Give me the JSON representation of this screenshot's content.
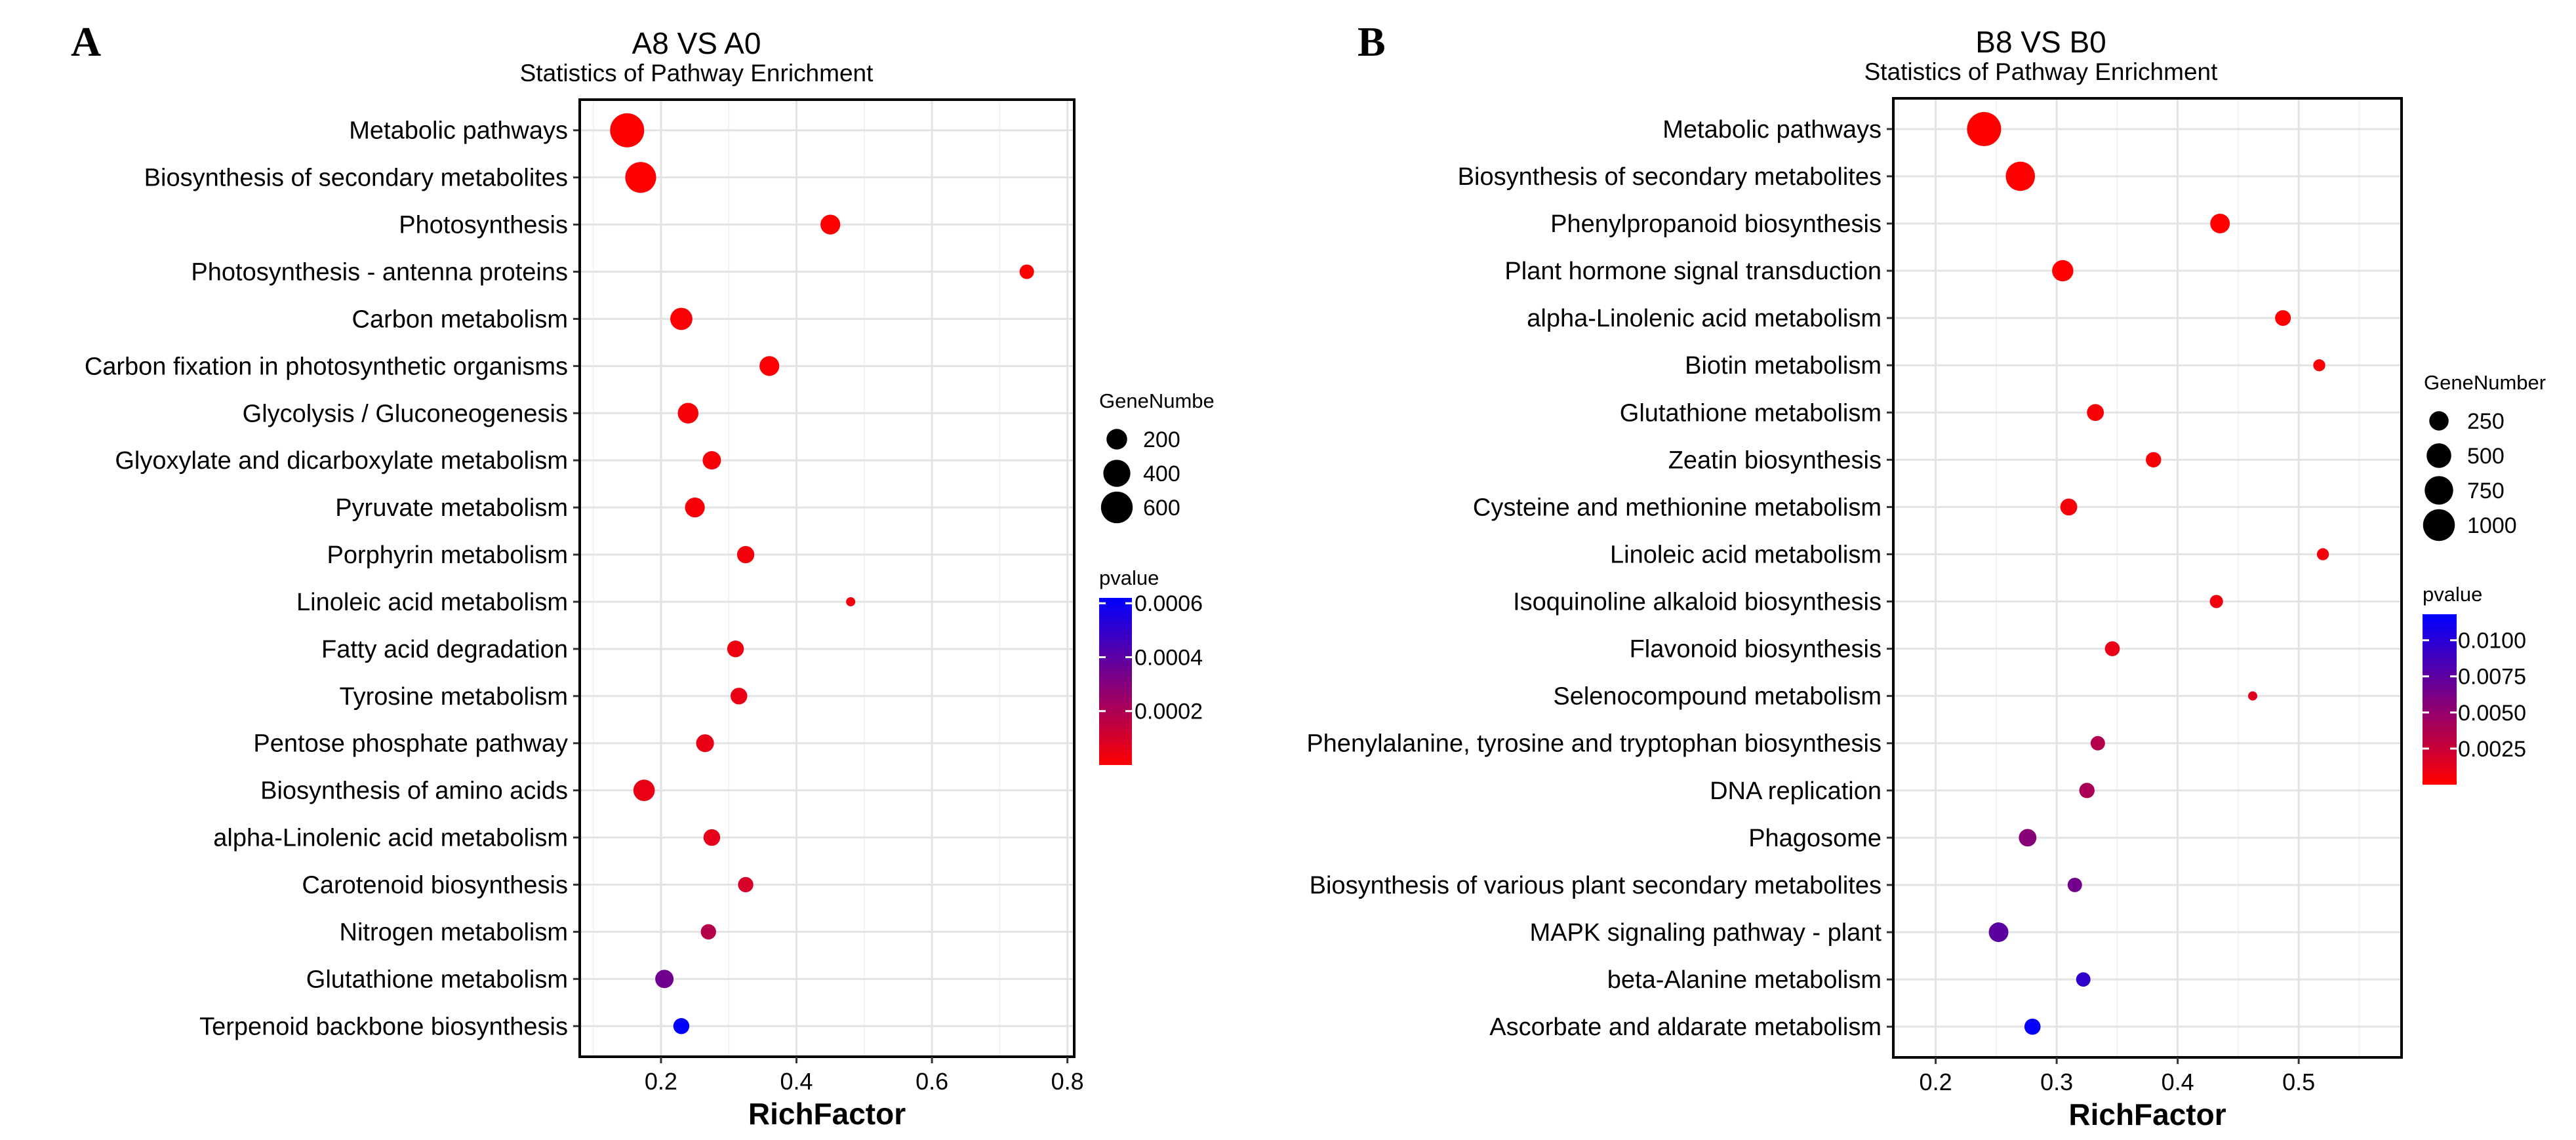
{
  "chart_data": [
    {
      "panel_letter": "A",
      "type": "scatter",
      "title": "A8 VS A0",
      "subtitle": "Statistics of Pathway Enrichment",
      "xlabel": "RichFactor",
      "ylabel": "",
      "xlim": [
        0.08,
        0.81
      ],
      "xticks": [
        0.2,
        0.4,
        0.6,
        0.8
      ],
      "xtick_labels": [
        "0.2",
        "0.4",
        "0.6",
        "0.8"
      ],
      "grid": true,
      "points": [
        {
          "pathway": "Metabolic pathways",
          "rich_factor": 0.15,
          "gene_number": 720,
          "pvalue": 0.0
        },
        {
          "pathway": "Biosynthesis of secondary metabolites",
          "rich_factor": 0.17,
          "gene_number": 560,
          "pvalue": 0.0
        },
        {
          "pathway": "Photosynthesis",
          "rich_factor": 0.45,
          "gene_number": 180,
          "pvalue": 0.0
        },
        {
          "pathway": "Photosynthesis - antenna proteins",
          "rich_factor": 0.74,
          "gene_number": 90,
          "pvalue": 0.0
        },
        {
          "pathway": "Carbon metabolism",
          "rich_factor": 0.23,
          "gene_number": 240,
          "pvalue": 1e-05
        },
        {
          "pathway": "Carbon fixation in photosynthetic organisms",
          "rich_factor": 0.36,
          "gene_number": 180,
          "pvalue": 1e-05
        },
        {
          "pathway": "Glycolysis / Gluconeogenesis",
          "rich_factor": 0.24,
          "gene_number": 200,
          "pvalue": 2e-05
        },
        {
          "pathway": "Glyoxylate and dicarboxylate metabolism",
          "rich_factor": 0.275,
          "gene_number": 150,
          "pvalue": 2e-05
        },
        {
          "pathway": "Pyruvate metabolism",
          "rich_factor": 0.25,
          "gene_number": 180,
          "pvalue": 2e-05
        },
        {
          "pathway": "Porphyrin metabolism",
          "rich_factor": 0.325,
          "gene_number": 130,
          "pvalue": 3e-05
        },
        {
          "pathway": "Linoleic acid metabolism",
          "rich_factor": 0.48,
          "gene_number": 60,
          "pvalue": 3e-05
        },
        {
          "pathway": "Fatty acid degradation",
          "rich_factor": 0.31,
          "gene_number": 120,
          "pvalue": 4e-05
        },
        {
          "pathway": "Tyrosine metabolism",
          "rich_factor": 0.315,
          "gene_number": 120,
          "pvalue": 5e-05
        },
        {
          "pathway": "Pentose phosphate pathway",
          "rich_factor": 0.265,
          "gene_number": 140,
          "pvalue": 5e-05
        },
        {
          "pathway": "Biosynthesis of amino acids",
          "rich_factor": 0.175,
          "gene_number": 220,
          "pvalue": 5e-05
        },
        {
          "pathway": "alpha-Linolenic acid metabolism",
          "rich_factor": 0.275,
          "gene_number": 120,
          "pvalue": 6e-05
        },
        {
          "pathway": "Carotenoid biosynthesis",
          "rich_factor": 0.325,
          "gene_number": 100,
          "pvalue": 0.0001
        },
        {
          "pathway": "Nitrogen metabolism",
          "rich_factor": 0.27,
          "gene_number": 100,
          "pvalue": 0.00018
        },
        {
          "pathway": "Glutathione metabolism",
          "rich_factor": 0.205,
          "gene_number": 150,
          "pvalue": 0.00035
        },
        {
          "pathway": "Terpenoid backbone biosynthesis",
          "rich_factor": 0.23,
          "gene_number": 110,
          "pvalue": 0.00062
        }
      ],
      "size_legend": {
        "title": "GeneNumbe",
        "entries": [
          {
            "value": 200,
            "label": "200"
          },
          {
            "value": 400,
            "label": "400"
          },
          {
            "value": 600,
            "label": "600"
          }
        ],
        "range": [
          60,
          720
        ]
      },
      "color_legend": {
        "title": "pvalue",
        "min": 0.0,
        "max": 0.00062,
        "ticks": [
          {
            "value": 0.0006,
            "label": "0.0006"
          },
          {
            "value": 0.0004,
            "label": "0.0004"
          },
          {
            "value": 0.0002,
            "label": "0.0002"
          }
        ],
        "low_color": "#ff0000",
        "high_color": "#0000ff"
      }
    },
    {
      "panel_letter": "B",
      "type": "scatter",
      "title": "B8 VS B0",
      "subtitle": "Statistics of Pathway Enrichment",
      "xlabel": "RichFactor",
      "ylabel": "",
      "xlim": [
        0.165,
        0.585
      ],
      "xticks": [
        0.2,
        0.3,
        0.4,
        0.5
      ],
      "xtick_labels": [
        "0.2",
        "0.3",
        "0.4",
        "0.5"
      ],
      "grid": true,
      "points": [
        {
          "pathway": "Metabolic pathways",
          "rich_factor": 0.24,
          "gene_number": 1200,
          "pvalue": 0.0
        },
        {
          "pathway": "Biosynthesis of secondary metabolites",
          "rich_factor": 0.27,
          "gene_number": 800,
          "pvalue": 0.0
        },
        {
          "pathway": "Phenylpropanoid biosynthesis",
          "rich_factor": 0.435,
          "gene_number": 260,
          "pvalue": 0.0
        },
        {
          "pathway": "Plant hormone signal transduction",
          "rich_factor": 0.305,
          "gene_number": 330,
          "pvalue": 0.0
        },
        {
          "pathway": "alpha-Linolenic acid metabolism",
          "rich_factor": 0.487,
          "gene_number": 140,
          "pvalue": 0.0
        },
        {
          "pathway": "Biotin metabolism",
          "rich_factor": 0.517,
          "gene_number": 75,
          "pvalue": 0.0002
        },
        {
          "pathway": "Glutathione metabolism",
          "rich_factor": 0.332,
          "gene_number": 170,
          "pvalue": 0.0003
        },
        {
          "pathway": "Zeatin biosynthesis",
          "rich_factor": 0.38,
          "gene_number": 130,
          "pvalue": 0.0003
        },
        {
          "pathway": "Cysteine and methionine metabolism",
          "rich_factor": 0.31,
          "gene_number": 170,
          "pvalue": 0.0004
        },
        {
          "pathway": "Linoleic acid metabolism",
          "rich_factor": 0.52,
          "gene_number": 75,
          "pvalue": 0.0005
        },
        {
          "pathway": "Isoquinoline alkaloid biosynthesis",
          "rich_factor": 0.432,
          "gene_number": 90,
          "pvalue": 0.0007
        },
        {
          "pathway": "Flavonoid biosynthesis",
          "rich_factor": 0.346,
          "gene_number": 120,
          "pvalue": 0.001
        },
        {
          "pathway": "Selenocompound metabolism",
          "rich_factor": 0.462,
          "gene_number": 60,
          "pvalue": 0.0015
        },
        {
          "pathway": "Phenylalanine, tyrosine and tryptophan biosynthesis",
          "rich_factor": 0.334,
          "gene_number": 110,
          "pvalue": 0.0035
        },
        {
          "pathway": "DNA replication",
          "rich_factor": 0.325,
          "gene_number": 130,
          "pvalue": 0.004
        },
        {
          "pathway": "Phagosome",
          "rich_factor": 0.276,
          "gene_number": 190,
          "pvalue": 0.0055
        },
        {
          "pathway": "Biosynthesis of various plant secondary metabolites",
          "rich_factor": 0.315,
          "gene_number": 110,
          "pvalue": 0.0065
        },
        {
          "pathway": "MAPK signaling pathway - plant",
          "rich_factor": 0.252,
          "gene_number": 260,
          "pvalue": 0.0075
        },
        {
          "pathway": "beta-Alanine metabolism",
          "rich_factor": 0.322,
          "gene_number": 110,
          "pvalue": 0.0095
        },
        {
          "pathway": "Ascorbate and aldarate metabolism",
          "rich_factor": 0.28,
          "gene_number": 150,
          "pvalue": 0.0115
        }
      ],
      "size_legend": {
        "title": "GeneNumber",
        "entries": [
          {
            "value": 250,
            "label": "250"
          },
          {
            "value": 500,
            "label": "500"
          },
          {
            "value": 750,
            "label": "750"
          },
          {
            "value": 1000,
            "label": "1000"
          }
        ],
        "range": [
          60,
          1200
        ]
      },
      "color_legend": {
        "title": "pvalue",
        "min": 0.0,
        "max": 0.0118,
        "ticks": [
          {
            "value": 0.01,
            "label": "0.0100"
          },
          {
            "value": 0.0075,
            "label": "0.0075"
          },
          {
            "value": 0.005,
            "label": "0.0050"
          },
          {
            "value": 0.0025,
            "label": "0.0025"
          }
        ],
        "low_color": "#ff0000",
        "high_color": "#0000ff"
      }
    }
  ]
}
